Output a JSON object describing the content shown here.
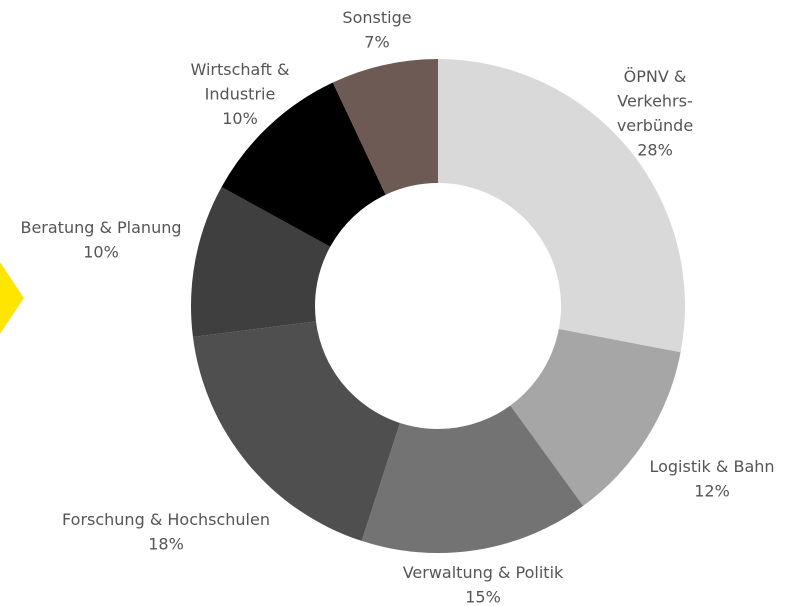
{
  "chart_data": {
    "type": "donut",
    "categories": [
      [
        "ÖPNV &",
        "Verkehrs-",
        "verbünde"
      ],
      [
        "Logistik & Bahn"
      ],
      [
        "Verwaltung & Politik"
      ],
      [
        "Forschung & Hochschulen"
      ],
      [
        "Beratung & Planung"
      ],
      [
        "Wirtschaft &",
        "Industrie"
      ],
      [
        "Sonstige"
      ]
    ],
    "values": [
      28,
      12,
      15,
      18,
      10,
      10,
      7
    ],
    "value_labels": [
      "28%",
      "12%",
      "15%",
      "18%",
      "10%",
      "10%",
      "7%"
    ],
    "colors": [
      "#d9d9d9",
      "#a6a6a6",
      "#737373",
      "#4f4f4f",
      "#3f3f3f",
      "#000000",
      "#6e5a55"
    ]
  }
}
